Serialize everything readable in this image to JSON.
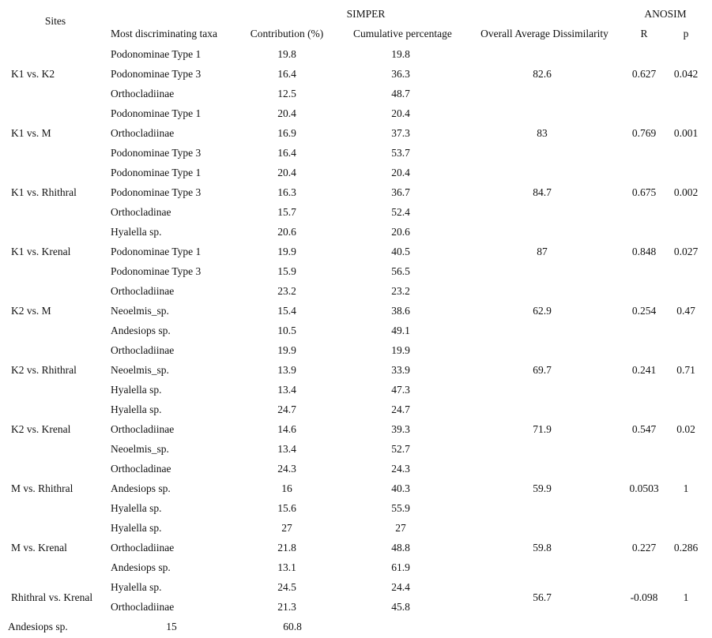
{
  "table": {
    "header": {
      "sites": "Sites",
      "simper": "SIMPER",
      "anosim": "ANOSIM",
      "col_taxa": "Most discriminating taxa",
      "col_contribution": "Contribution (%)",
      "col_cumulative": "Cumulative percentage",
      "col_dissimilarity": "Overall Average Dissimilarity",
      "col_r": "R",
      "col_p": "p"
    },
    "groups": [
      {
        "site": "K1 vs. K2",
        "dissimilarity": "82.6",
        "R": "0.627",
        "p": "0.042",
        "label_row": 1,
        "rows": [
          {
            "taxa": "Podonominae Type 1",
            "contribution": "19.8",
            "cumulative": "19.8"
          },
          {
            "taxa": "Podonominae Type 3",
            "contribution": "16.4",
            "cumulative": "36.3"
          },
          {
            "taxa": "Orthocladiinae",
            "contribution": "12.5",
            "cumulative": "48.7"
          }
        ]
      },
      {
        "site": "K1 vs. M",
        "dissimilarity": "83",
        "R": "0.769",
        "p": "0.001",
        "label_row": 1,
        "rows": [
          {
            "taxa": "Podonominae Type 1",
            "contribution": "20.4",
            "cumulative": "20.4"
          },
          {
            "taxa": "Orthocladiinae",
            "contribution": "16.9",
            "cumulative": "37.3"
          },
          {
            "taxa": "Podonominae Type 3",
            "contribution": "16.4",
            "cumulative": "53.7"
          }
        ]
      },
      {
        "site": "K1 vs. Rhithral",
        "dissimilarity": "84.7",
        "R": "0.675",
        "p": "0.002",
        "label_row": 1,
        "rows": [
          {
            "taxa": "Podonominae Type 1",
            "contribution": "20.4",
            "cumulative": "20.4"
          },
          {
            "taxa": "Podonominae Type 3",
            "contribution": "16.3",
            "cumulative": "36.7"
          },
          {
            "taxa": "Orthocladinae",
            "contribution": "15.7",
            "cumulative": "52.4"
          }
        ]
      },
      {
        "site": "K1 vs. Krenal",
        "dissimilarity": "87",
        "R": "0.848",
        "p": "0.027",
        "label_row": 1,
        "rows": [
          {
            "taxa": "Hyalella sp.",
            "contribution": "20.6",
            "cumulative": "20.6"
          },
          {
            "taxa": "Podonominae Type 1",
            "contribution": "19.9",
            "cumulative": "40.5"
          },
          {
            "taxa": "Podonominae Type 3",
            "contribution": "15.9",
            "cumulative": "56.5"
          }
        ]
      },
      {
        "site": "K2 vs. M",
        "dissimilarity": "62.9",
        "R": "0.254",
        "p": "0.47",
        "label_row": 1,
        "rows": [
          {
            "taxa": "Orthocladiinae",
            "contribution": "23.2",
            "cumulative": "23.2"
          },
          {
            "taxa": "Neoelmis_sp.",
            "contribution": "15.4",
            "cumulative": "38.6"
          },
          {
            "taxa": "Andesiops sp.",
            "contribution": "10.5",
            "cumulative": "49.1"
          }
        ]
      },
      {
        "site": "K2 vs. Rhithral",
        "dissimilarity": "69.7",
        "R": "0.241",
        "p": "0.71",
        "label_row": 1,
        "rows": [
          {
            "taxa": "Orthocladiinae",
            "contribution": "19.9",
            "cumulative": "19.9"
          },
          {
            "taxa": "Neoelmis_sp.",
            "contribution": "13.9",
            "cumulative": "33.9"
          },
          {
            "taxa": "Hyalella sp.",
            "contribution": "13.4",
            "cumulative": "47.3"
          }
        ]
      },
      {
        "site": "K2 vs. Krenal",
        "dissimilarity": "71.9",
        "R": "0.547",
        "p": "0.02",
        "label_row": 1,
        "rows": [
          {
            "taxa": "Hyalella sp.",
            "contribution": "24.7",
            "cumulative": "24.7"
          },
          {
            "taxa": "Orthocladiinae",
            "contribution": "14.6",
            "cumulative": "39.3"
          },
          {
            "taxa": "Neoelmis_sp.",
            "contribution": "13.4",
            "cumulative": "52.7"
          }
        ]
      },
      {
        "site": "M vs. Rhithral",
        "dissimilarity": "59.9",
        "R": "0.0503",
        "p": "1",
        "label_row": 1,
        "rows": [
          {
            "taxa": "Orthocladinae",
            "contribution": "24.3",
            "cumulative": "24.3"
          },
          {
            "taxa": "Andesiops sp.",
            "contribution": "16",
            "cumulative": "40.3"
          },
          {
            "taxa": "Hyalella sp.",
            "contribution": "15.6",
            "cumulative": "55.9"
          }
        ]
      },
      {
        "site": "M vs. Krenal",
        "dissimilarity": "59.8",
        "R": "0.227",
        "p": "0.286",
        "label_row": 1,
        "rows": [
          {
            "taxa": "Hyalella sp.",
            "contribution": "27",
            "cumulative": "27"
          },
          {
            "taxa": "Orthocladiinae",
            "contribution": "21.8",
            "cumulative": "48.8"
          },
          {
            "taxa": "Andesiops sp.",
            "contribution": "13.1",
            "cumulative": "61.9"
          }
        ]
      },
      {
        "site": "Rhithral vs. Krenal",
        "dissimilarity": "56.7",
        "R": "-0.098",
        "p": "1",
        "label_center": true,
        "rows": [
          {
            "taxa": "Hyalella sp.",
            "contribution": "24.5",
            "cumulative": "24.4"
          },
          {
            "taxa": "Orthocladiinae",
            "contribution": "21.3",
            "cumulative": "45.8"
          }
        ]
      }
    ],
    "overflow_row": {
      "taxa": "Andesiops sp.",
      "contribution": "15",
      "cumulative": "60.8"
    }
  }
}
